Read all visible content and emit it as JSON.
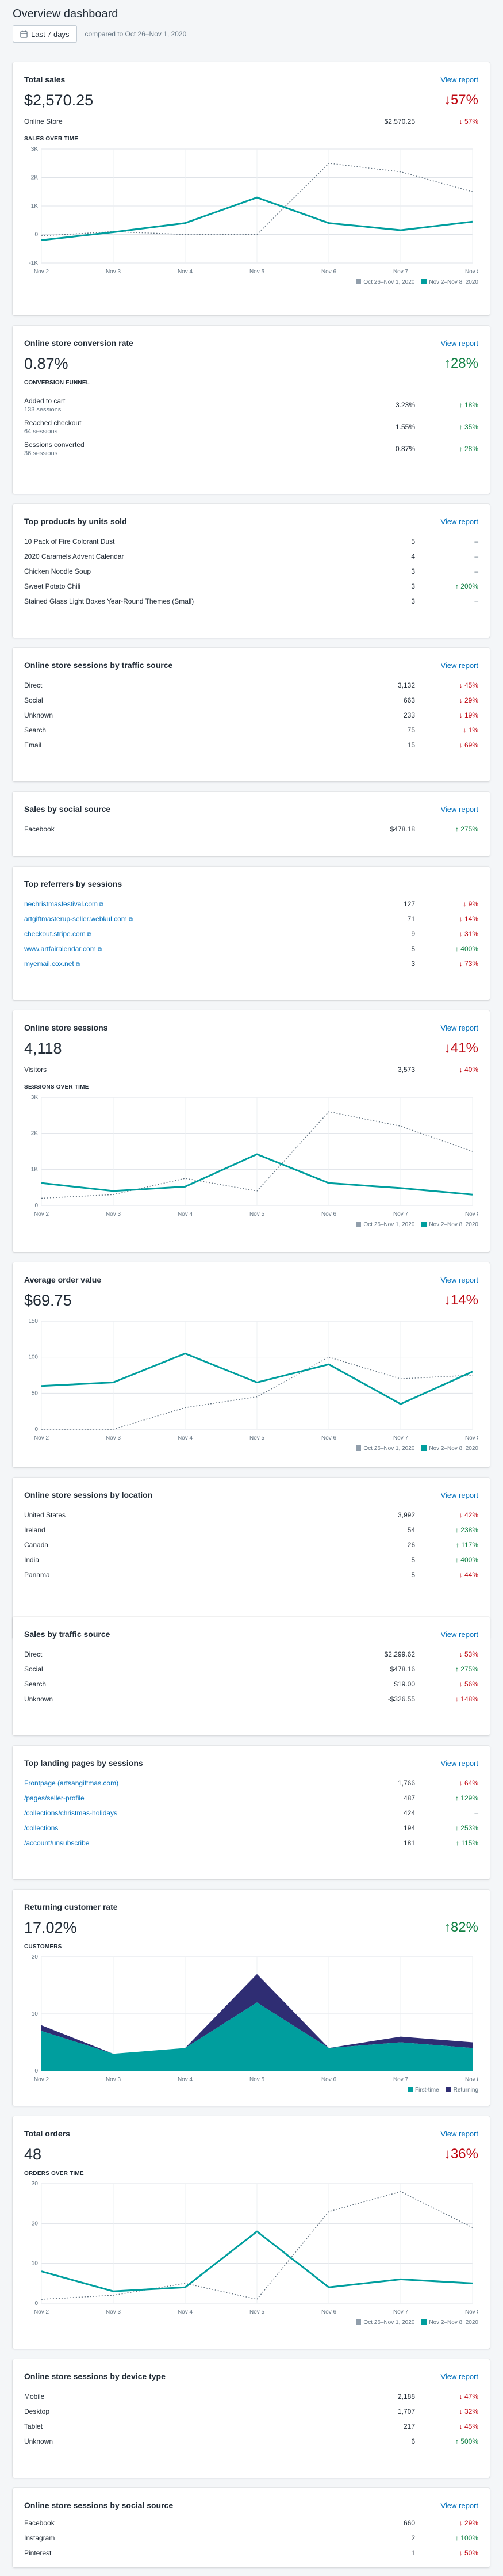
{
  "page": {
    "title": "Overview dashboard",
    "date_button": "Last 7 days",
    "compare_text": "compared to Oct 26–Nov 1, 2020"
  },
  "common": {
    "view_report": "View report",
    "legend_prev": "Oct 26–Nov 1, 2020",
    "legend_curr": "Nov 2–Nov 8, 2020"
  },
  "colors": {
    "accent": "#009e9e",
    "link": "#006fbb",
    "up": "#108043",
    "down": "#bf0711",
    "returning": "#2f2d73"
  },
  "days": [
    "Nov 2",
    "Nov 3",
    "Nov 4",
    "Nov 5",
    "Nov 6",
    "Nov 7",
    "Nov 8"
  ],
  "total_sales": {
    "title": "Total sales",
    "value": "$2,570.25",
    "change": "↓57%",
    "row": {
      "name": "Online Store",
      "value": "$2,570.25",
      "change": "↓ 57%"
    },
    "chart_label": "SALES OVER TIME"
  },
  "conversion": {
    "title": "Online store conversion rate",
    "value": "0.87%",
    "change": "↑28%",
    "funnel_label": "CONVERSION FUNNEL",
    "rows": [
      {
        "name": "Added to cart",
        "sub": "133 sessions",
        "value": "3.23%",
        "change": "↑ 18%",
        "dir": "up"
      },
      {
        "name": "Reached checkout",
        "sub": "64 sessions",
        "value": "1.55%",
        "change": "↑ 35%",
        "dir": "up"
      },
      {
        "name": "Sessions converted",
        "sub": "36 sessions",
        "value": "0.87%",
        "change": "↑ 28%",
        "dir": "up"
      }
    ]
  },
  "top_products": {
    "title": "Top products by units sold",
    "rows": [
      {
        "name": "10 Pack of Fire Colorant Dust",
        "value": "5",
        "change": "–",
        "dir": "neutral"
      },
      {
        "name": "2020 Caramels Advent Calendar",
        "value": "4",
        "change": "–",
        "dir": "neutral"
      },
      {
        "name": "Chicken Noodle Soup",
        "value": "3",
        "change": "–",
        "dir": "neutral"
      },
      {
        "name": "Sweet Potato Chili",
        "value": "3",
        "change": "↑ 200%",
        "dir": "up"
      },
      {
        "name": "Stained Glass Light Boxes Year-Round Themes (Small)",
        "value": "3",
        "change": "–",
        "dir": "neutral"
      }
    ]
  },
  "traffic_source": {
    "title": "Online store sessions by traffic source",
    "rows": [
      {
        "name": "Direct",
        "value": "3,132",
        "change": "↓ 45%",
        "dir": "down"
      },
      {
        "name": "Social",
        "value": "663",
        "change": "↓ 29%",
        "dir": "down"
      },
      {
        "name": "Unknown",
        "value": "233",
        "change": "↓ 19%",
        "dir": "down"
      },
      {
        "name": "Search",
        "value": "75",
        "change": "↓ 1%",
        "dir": "down"
      },
      {
        "name": "Email",
        "value": "15",
        "change": "↓ 69%",
        "dir": "down"
      }
    ]
  },
  "social_sales": {
    "title": "Sales by social source",
    "rows": [
      {
        "name": "Facebook",
        "value": "$478.18",
        "change": "↑ 275%",
        "dir": "up"
      }
    ]
  },
  "referrers": {
    "title": "Top referrers by sessions",
    "rows": [
      {
        "name": "nechristmasfestival.com",
        "value": "127",
        "change": "↓ 9%",
        "dir": "down"
      },
      {
        "name": "artgiftmasterup-seller.webkul.com",
        "value": "71",
        "change": "↓ 14%",
        "dir": "down"
      },
      {
        "name": "checkout.stripe.com",
        "value": "9",
        "change": "↓ 31%",
        "dir": "down"
      },
      {
        "name": "www.artfairalendar.com",
        "value": "5",
        "change": "↑ 400%",
        "dir": "up"
      },
      {
        "name": "myemail.cox.net",
        "value": "3",
        "change": "↓ 73%",
        "dir": "down"
      }
    ]
  },
  "sessions": {
    "title": "Online store sessions",
    "value": "4,118",
    "change": "↓41%",
    "row": {
      "name": "Visitors",
      "value": "3,573",
      "change": "↓ 40%"
    },
    "chart_label": "SESSIONS OVER TIME"
  },
  "aov": {
    "title": "Average order value",
    "value": "$69.75",
    "change": "↓14%"
  },
  "location": {
    "title": "Online store sessions by location",
    "rows": [
      {
        "name": "United States",
        "value": "3,992",
        "change": "↓ 42%",
        "dir": "down"
      },
      {
        "name": "Ireland",
        "value": "54",
        "change": "↑ 238%",
        "dir": "up"
      },
      {
        "name": "Canada",
        "value": "26",
        "change": "↑ 117%",
        "dir": "up"
      },
      {
        "name": "India",
        "value": "5",
        "change": "↑ 400%",
        "dir": "up"
      },
      {
        "name": "Panama",
        "value": "5",
        "change": "↓ 44%",
        "dir": "down"
      }
    ]
  },
  "sales_traffic": {
    "title": "Sales by traffic source",
    "rows": [
      {
        "name": "Direct",
        "value": "$2,299.62",
        "change": "↓ 53%",
        "dir": "down"
      },
      {
        "name": "Social",
        "value": "$478.16",
        "change": "↑ 275%",
        "dir": "up"
      },
      {
        "name": "Search",
        "value": "$19.00",
        "change": "↓ 56%",
        "dir": "down"
      },
      {
        "name": "Unknown",
        "value": "-$326.55",
        "change": "↓ 148%",
        "dir": "down"
      }
    ]
  },
  "landing": {
    "title": "Top landing pages by sessions",
    "rows": [
      {
        "name": "Frontpage (artsangiftmas.com)",
        "value": "1,766",
        "change": "↓ 64%",
        "dir": "down"
      },
      {
        "name": "/pages/seller-profile",
        "value": "487",
        "change": "↑ 129%",
        "dir": "up"
      },
      {
        "name": "/collections/christmas-holidays",
        "value": "424",
        "change": "–",
        "dir": "neutral"
      },
      {
        "name": "/collections",
        "value": "194",
        "change": "↑ 253%",
        "dir": "up"
      },
      {
        "name": "/account/unsubscribe",
        "value": "181",
        "change": "↑ 115%",
        "dir": "up"
      }
    ]
  },
  "returning": {
    "title": "Returning customer rate",
    "value": "17.02%",
    "change": "↑82%",
    "chart_label": "CUSTOMERS",
    "legend_first": "First-time",
    "legend_returning": "Returning"
  },
  "orders": {
    "title": "Total orders",
    "value": "48",
    "change": "↓36%",
    "chart_label": "ORDERS OVER TIME"
  },
  "device": {
    "title": "Online store sessions by device type",
    "rows": [
      {
        "name": "Mobile",
        "value": "2,188",
        "change": "↓ 47%",
        "dir": "down"
      },
      {
        "name": "Desktop",
        "value": "1,707",
        "change": "↓ 32%",
        "dir": "down"
      },
      {
        "name": "Tablet",
        "value": "217",
        "change": "↓ 45%",
        "dir": "down"
      },
      {
        "name": "Unknown",
        "value": "6",
        "change": "↑ 500%",
        "dir": "up"
      }
    ]
  },
  "social_sessions": {
    "title": "Online store sessions by social source",
    "rows": [
      {
        "name": "Facebook",
        "value": "660",
        "change": "↓ 29%",
        "dir": "down"
      },
      {
        "name": "Instagram",
        "value": "2",
        "change": "↑ 100%",
        "dir": "up"
      },
      {
        "name": "Pinterest",
        "value": "1",
        "change": "↓ 50%",
        "dir": "down"
      }
    ]
  },
  "chart_data": [
    {
      "id": "sales",
      "type": "line",
      "title": "SALES OVER TIME",
      "categories": [
        "Nov 2",
        "Nov 3",
        "Nov 4",
        "Nov 5",
        "Nov 6",
        "Nov 7",
        "Nov 8"
      ],
      "ylim": [
        -1000,
        3000
      ],
      "yticks": [
        "-1K",
        "0",
        "1K",
        "2K",
        "3K"
      ],
      "series": [
        {
          "name": "Nov 2–Nov 8, 2020",
          "values": [
            -200,
            80,
            400,
            1300,
            400,
            150,
            450
          ]
        },
        {
          "name": "Oct 26–Nov 1, 2020",
          "values": [
            -50,
            100,
            0,
            0,
            2500,
            2200,
            1500
          ]
        }
      ]
    },
    {
      "id": "sessions",
      "type": "line",
      "title": "SESSIONS OVER TIME",
      "categories": [
        "Nov 2",
        "Nov 3",
        "Nov 4",
        "Nov 5",
        "Nov 6",
        "Nov 7",
        "Nov 8"
      ],
      "ylim": [
        0,
        3000
      ],
      "yticks": [
        "0",
        "1K",
        "2K",
        "3K"
      ],
      "series": [
        {
          "name": "Nov 2–Nov 8, 2020",
          "values": [
            620,
            400,
            520,
            1420,
            620,
            480,
            300
          ]
        },
        {
          "name": "Oct 26–Nov 1, 2020",
          "values": [
            200,
            300,
            750,
            400,
            2600,
            2200,
            1500
          ]
        }
      ]
    },
    {
      "id": "aov",
      "type": "line",
      "title": "Average order value",
      "categories": [
        "Nov 2",
        "Nov 3",
        "Nov 4",
        "Nov 5",
        "Nov 6",
        "Nov 7",
        "Nov 8"
      ],
      "ylim": [
        0,
        150
      ],
      "yticks": [
        "0",
        "50",
        "100",
        "150"
      ],
      "series": [
        {
          "name": "Nov 2–Nov 8, 2020",
          "values": [
            60,
            65,
            105,
            65,
            90,
            35,
            80
          ]
        },
        {
          "name": "Oct 26–Nov 1, 2020",
          "values": [
            0,
            0,
            30,
            45,
            100,
            70,
            75
          ]
        }
      ]
    },
    {
      "id": "customers",
      "type": "area",
      "title": "CUSTOMERS",
      "categories": [
        "Nov 2",
        "Nov 3",
        "Nov 4",
        "Nov 5",
        "Nov 6",
        "Nov 7",
        "Nov 8"
      ],
      "ylim": [
        0,
        20
      ],
      "yticks": [
        "0",
        "10",
        "20"
      ],
      "series": [
        {
          "name": "First-time",
          "values": [
            7,
            3,
            4,
            12,
            4,
            5,
            4
          ]
        },
        {
          "name": "Returning",
          "values": [
            1,
            0,
            0,
            5,
            0,
            1,
            1
          ]
        }
      ]
    },
    {
      "id": "orders",
      "type": "line",
      "title": "ORDERS OVER TIME",
      "categories": [
        "Nov 2",
        "Nov 3",
        "Nov 4",
        "Nov 5",
        "Nov 6",
        "Nov 7",
        "Nov 8"
      ],
      "ylim": [
        0,
        30
      ],
      "yticks": [
        "0",
        "10",
        "20",
        "30"
      ],
      "series": [
        {
          "name": "Nov 2–Nov 8, 2020",
          "values": [
            8,
            3,
            4,
            18,
            4,
            6,
            5
          ]
        },
        {
          "name": "Oct 26–Nov 1, 2020",
          "values": [
            1,
            2,
            5,
            1,
            23,
            28,
            19
          ]
        }
      ]
    }
  ]
}
